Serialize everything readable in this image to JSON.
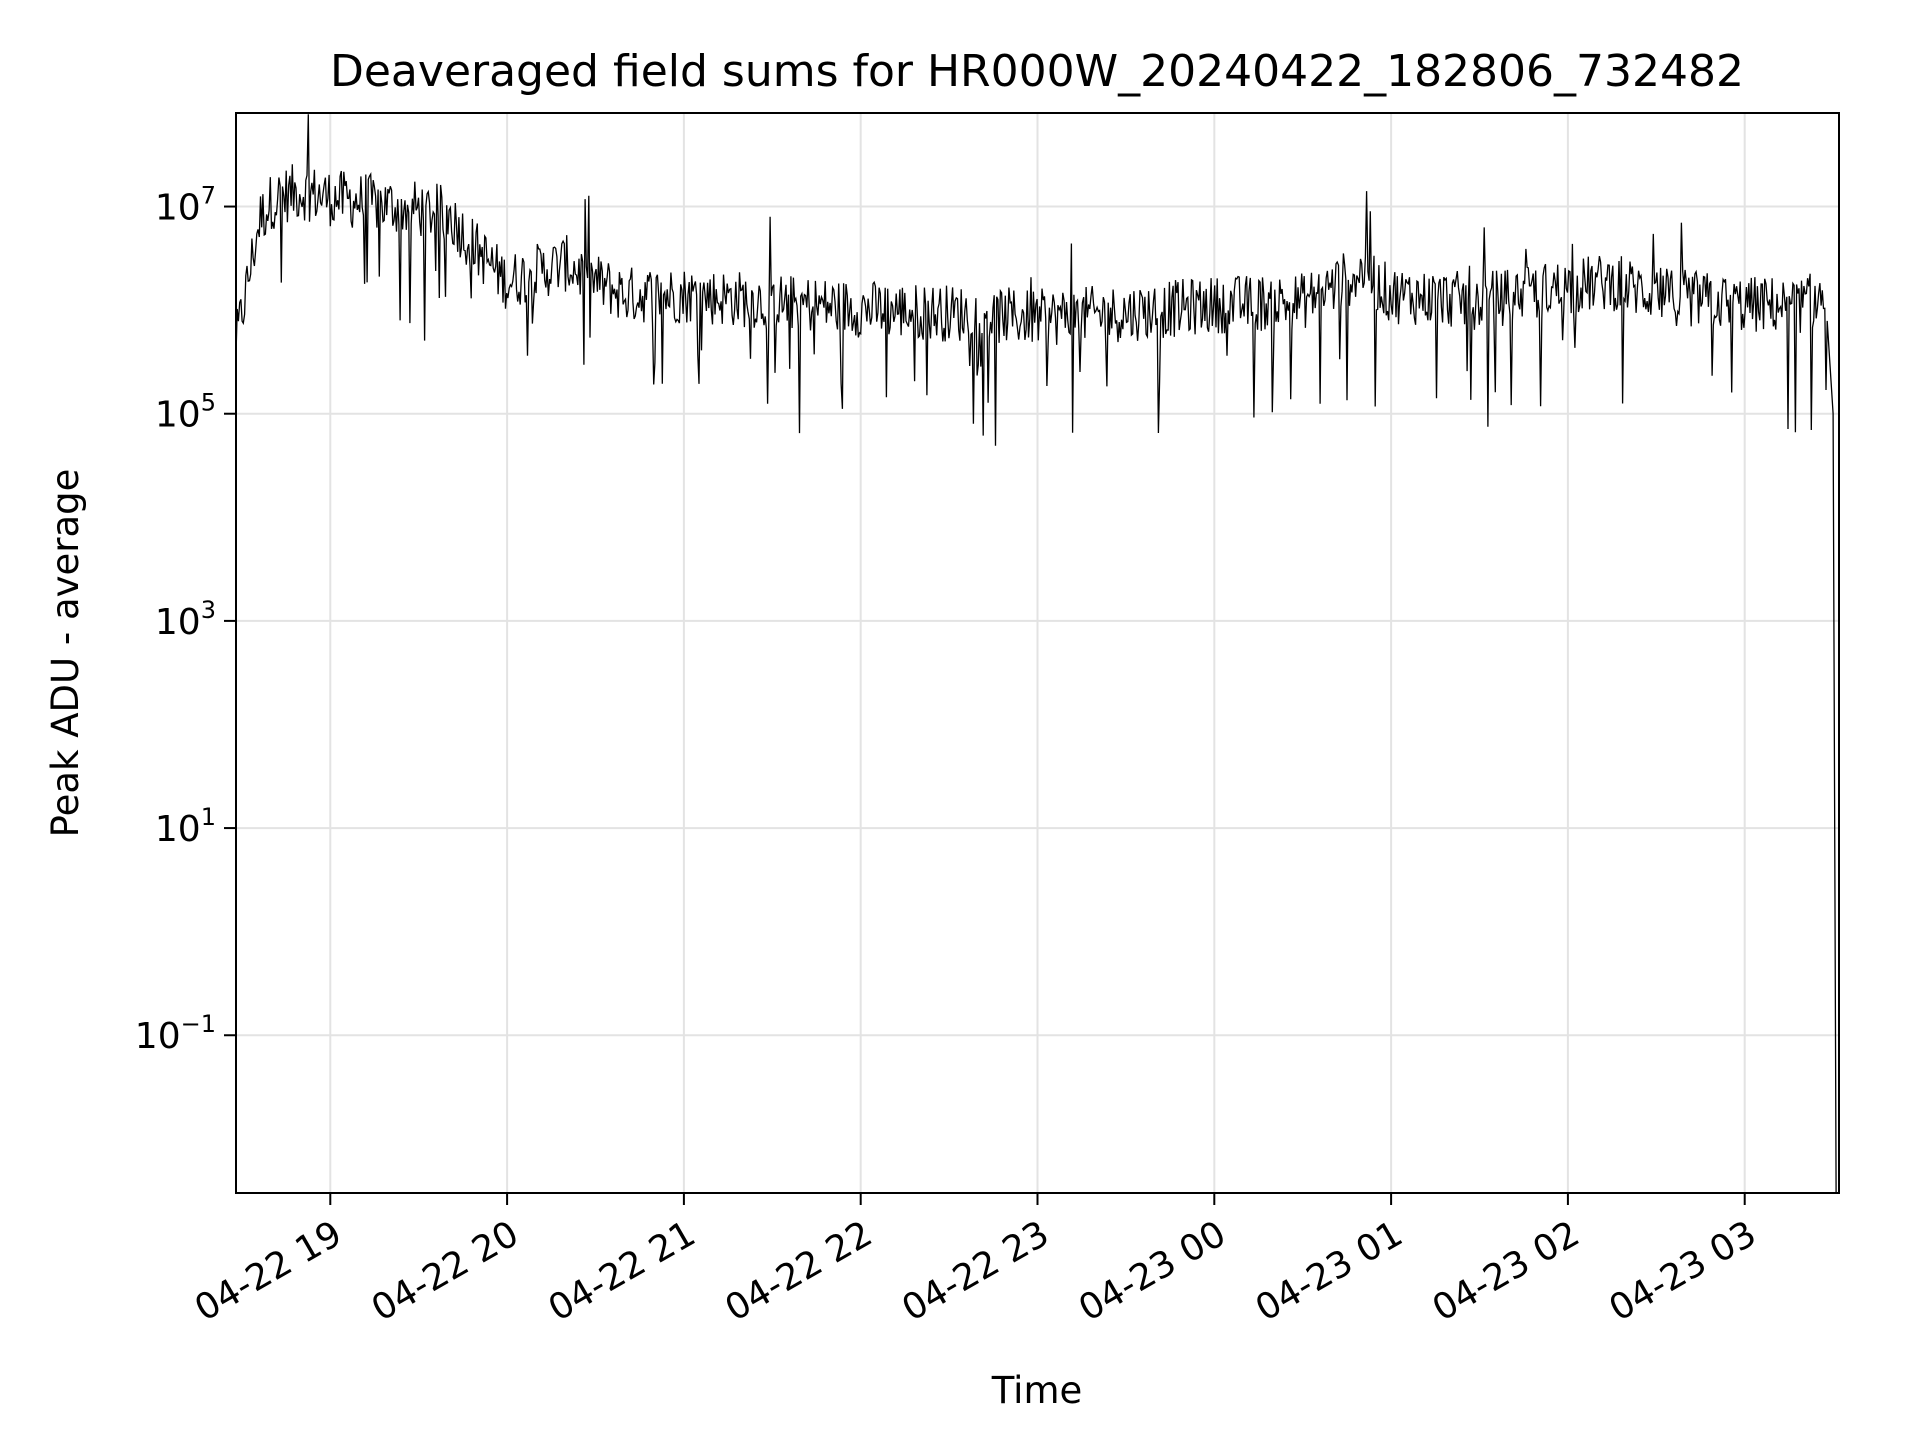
{
  "chart_data": {
    "type": "line",
    "title": "Deaveraged field sums for HR000W_20240422_182806_732482",
    "xlabel": "Time",
    "ylabel": "Peak ADU - average",
    "yscale": "log",
    "grid": true,
    "line_color": "#000000",
    "xlim": [
      "2024-04-22 18:28",
      "2024-04-23 03:32"
    ],
    "ylim": [
      0.003,
      80000000
    ],
    "x_ticks": [
      {
        "value": "2024-04-22 19:00",
        "label": "04-22 19"
      },
      {
        "value": "2024-04-22 20:00",
        "label": "04-22 20"
      },
      {
        "value": "2024-04-22 21:00",
        "label": "04-22 21"
      },
      {
        "value": "2024-04-22 22:00",
        "label": "04-22 22"
      },
      {
        "value": "2024-04-22 23:00",
        "label": "04-22 23"
      },
      {
        "value": "2024-04-23 00:00",
        "label": "04-23 00"
      },
      {
        "value": "2024-04-23 01:00",
        "label": "04-23 01"
      },
      {
        "value": "2024-04-23 02:00",
        "label": "04-23 02"
      },
      {
        "value": "2024-04-23 03:00",
        "label": "04-23 03"
      }
    ],
    "y_ticks": [
      {
        "value": 0.1,
        "base": "10",
        "exp": "−1"
      },
      {
        "value": 10,
        "base": "10",
        "exp": "1"
      },
      {
        "value": 1000,
        "base": "10",
        "exp": "3"
      },
      {
        "value": 100000,
        "base": "10",
        "exp": "5"
      },
      {
        "value": 10000000,
        "base": "10",
        "exp": "7"
      }
    ],
    "series": [
      {
        "x": [
          "2024-04-22 18:28",
          "2024-04-22 18:32",
          "2024-04-22 18:36",
          "2024-04-22 18:40",
          "2024-04-22 18:45",
          "2024-04-22 18:50",
          "2024-04-22 18:55",
          "2024-04-22 19:00",
          "2024-04-22 19:10",
          "2024-04-22 19:20",
          "2024-04-22 19:30",
          "2024-04-22 19:40",
          "2024-04-22 19:50",
          "2024-04-22 20:00",
          "2024-04-22 20:10",
          "2024-04-22 20:20",
          "2024-04-22 20:30",
          "2024-04-22 20:40",
          "2024-04-22 21:00",
          "2024-04-22 21:30",
          "2024-04-22 22:00",
          "2024-04-22 22:30",
          "2024-04-22 23:00",
          "2024-04-22 23:30",
          "2024-04-23 00:00",
          "2024-04-23 00:30",
          "2024-04-23 00:50",
          "2024-04-23 01:00",
          "2024-04-23 01:30",
          "2024-04-23 02:00",
          "2024-04-23 02:15",
          "2024-04-23 02:30",
          "2024-04-23 03:00",
          "2024-04-23 03:20",
          "2024-04-23 03:26",
          "2024-04-23 03:28",
          "2024-04-23 03:30",
          "2024-04-23 03:31"
        ],
        "y": [
          500000,
          2000000,
          8000000,
          12000000,
          14000000,
          15000000,
          14000000,
          13000000,
          12000000,
          11000000,
          10000000,
          9000000,
          4000000,
          2000000,
          2500000,
          3000000,
          2000000,
          1500000,
          1500000,
          1300000,
          1100000,
          1000000,
          900000,
          1000000,
          1200000,
          1300000,
          2500000,
          1500000,
          1300000,
          1800000,
          2000000,
          1500000,
          1200000,
          1200000,
          1400000,
          800000,
          100000,
          0.003
        ],
        "noise_log10_amplitude": 0.35,
        "approx_points": 1300
      }
    ]
  }
}
